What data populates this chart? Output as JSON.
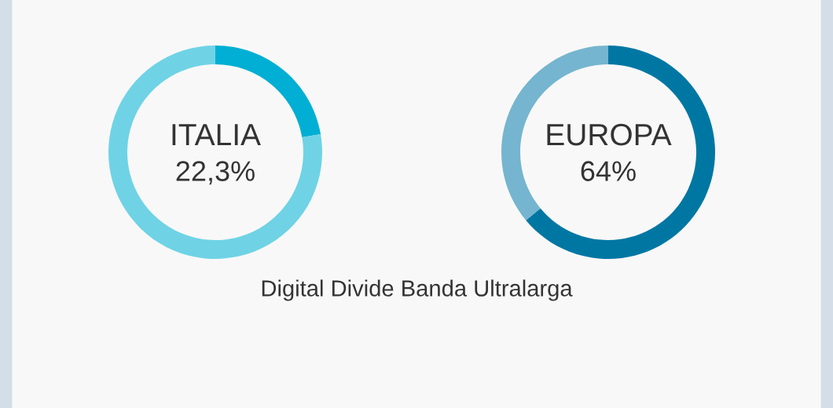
{
  "chart_data": [
    {
      "type": "donut",
      "title": "ITALIA",
      "categories": [
        null,
        null
      ],
      "values": [
        22.3,
        77.7
      ],
      "colors": [
        "#00afd3",
        "#6fd3e5"
      ],
      "annotations": [
        "22,3%",
        "Digital Divide Banda Ultralarga"
      ]
    },
    {
      "type": "donut",
      "title": "EUROPA",
      "categories": [
        null,
        null
      ],
      "values": [
        64,
        36
      ],
      "colors": [
        "#0077a3",
        "#75b5cf"
      ],
      "annotations": [
        "64%"
      ]
    }
  ]
}
